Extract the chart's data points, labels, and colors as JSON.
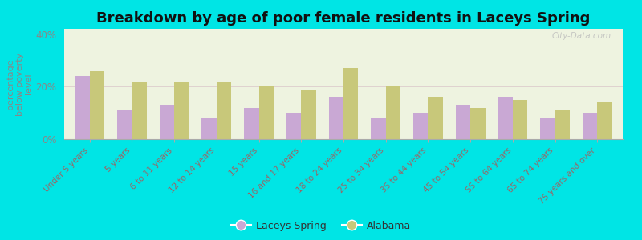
{
  "title": "Breakdown by age of poor female residents in Laceys Spring",
  "ylabel": "percentage\nbelow poverty\nlevel",
  "categories": [
    "Under 5 years",
    "5 years",
    "6 to 11 years",
    "12 to 14 years",
    "15 years",
    "16 and 17 years",
    "18 to 24 years",
    "25 to 34 years",
    "35 to 44 years",
    "45 to 54 years",
    "55 to 64 years",
    "65 to 74 years",
    "75 years and over"
  ],
  "laceys_spring": [
    24,
    11,
    13,
    8,
    12,
    10,
    16,
    8,
    10,
    13,
    16,
    8,
    10
  ],
  "alabama": [
    26,
    22,
    22,
    22,
    20,
    19,
    27,
    20,
    16,
    12,
    15,
    11,
    14
  ],
  "laceys_color": "#c9a8d4",
  "alabama_color": "#c8c87a",
  "background_plot": "#eef3e0",
  "background_outer": "#00e5e5",
  "ylim": [
    0,
    42
  ],
  "yticks": [
    0,
    20,
    40
  ],
  "ytick_labels": [
    "0%",
    "20%",
    "40%"
  ],
  "bar_width": 0.35,
  "title_fontsize": 13,
  "legend_labels": [
    "Laceys Spring",
    "Alabama"
  ],
  "watermark": "City-Data.com",
  "tick_color": "#996666",
  "ylabel_color": "#888888"
}
